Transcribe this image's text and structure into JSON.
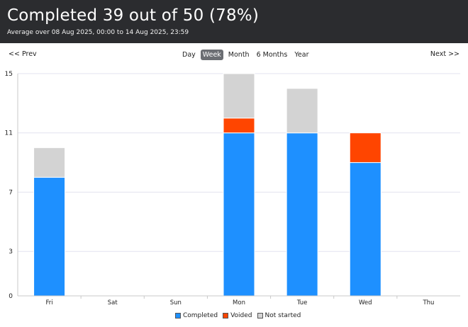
{
  "header": {
    "title": "Completed 39 out of 50 (78%)",
    "subtitle": "Average over 08 Aug 2025, 00:00 to 14 Aug 2025, 23:59"
  },
  "nav": {
    "prev_label": "<< Prev",
    "next_label": "Next >>",
    "periods": [
      {
        "label": "Day",
        "active": false
      },
      {
        "label": "Week",
        "active": true
      },
      {
        "label": "Month",
        "active": false
      },
      {
        "label": "6 Months",
        "active": false
      },
      {
        "label": "Year",
        "active": false
      }
    ]
  },
  "legend": {
    "items": [
      {
        "label": "Completed",
        "color": "#1e90ff"
      },
      {
        "label": "Voided",
        "color": "#ff4500"
      },
      {
        "label": "Not started",
        "color": "#d3d3d3"
      }
    ]
  },
  "chart_data": {
    "type": "bar",
    "stacked": true,
    "categories": [
      "Fri",
      "Sat",
      "Sun",
      "Mon",
      "Tue",
      "Wed",
      "Thu"
    ],
    "series": [
      {
        "name": "Completed",
        "color": "#1e90ff",
        "values": [
          8,
          0,
          0,
          11,
          11,
          9,
          0
        ]
      },
      {
        "name": "Voided",
        "color": "#ff4500",
        "values": [
          0,
          0,
          0,
          1,
          0,
          2,
          0
        ]
      },
      {
        "name": "Not started",
        "color": "#d3d3d3",
        "values": [
          2,
          0,
          0,
          3,
          3,
          0,
          0
        ]
      }
    ],
    "yticks": [
      0,
      3,
      7,
      11,
      15
    ],
    "ylim": [
      0,
      15
    ],
    "grid": true,
    "legend_position": "bottom"
  }
}
